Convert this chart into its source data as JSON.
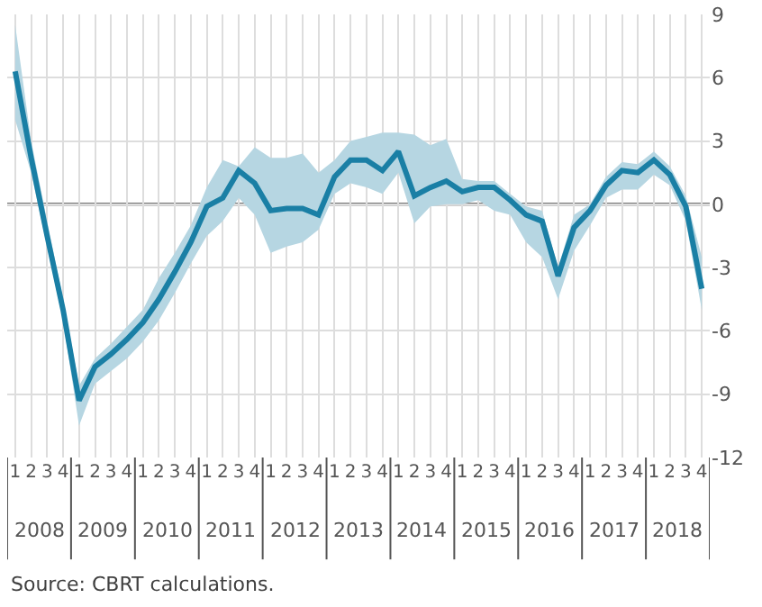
{
  "chart_data": {
    "type": "line",
    "categories": [
      "1",
      "2",
      "3",
      "4",
      "1",
      "2",
      "3",
      "4",
      "1",
      "2",
      "3",
      "4",
      "1",
      "2",
      "3",
      "4",
      "1",
      "2",
      "3",
      "4",
      "1",
      "2",
      "3",
      "4",
      "1",
      "2",
      "3",
      "4",
      "1",
      "2",
      "3",
      "4",
      "1",
      "2",
      "3",
      "4",
      "1",
      "2",
      "3",
      "4",
      "1",
      "2",
      "3",
      "4"
    ],
    "series": [
      {
        "color": "#1a7fa5",
        "values": [
          6.3,
          2.2,
          -1.5,
          -5.0,
          -9.3,
          -7.7,
          -7.1,
          -6.4,
          -5.6,
          -4.5,
          -3.2,
          -1.8,
          -0.1,
          0.3,
          1.6,
          1.0,
          -0.3,
          -0.2,
          -0.2,
          -0.5,
          1.3,
          2.1,
          2.1,
          1.6,
          2.5,
          0.4,
          0.8,
          1.1,
          0.6,
          0.8,
          0.8,
          0.2,
          -0.5,
          -0.8,
          -3.4,
          -1.1,
          -0.3,
          0.9,
          1.6,
          1.5,
          2.1,
          1.4,
          -0.1,
          -4.0
        ],
        "lower": [
          4.0,
          1.5,
          -2.0,
          -5.5,
          -10.5,
          -8.5,
          -7.9,
          -7.3,
          -6.5,
          -5.5,
          -4.2,
          -2.8,
          -1.5,
          -0.8,
          0.3,
          -0.5,
          -2.3,
          -2.0,
          -1.8,
          -1.2,
          0.5,
          1.0,
          0.8,
          0.5,
          1.5,
          -0.9,
          -0.1,
          0.0,
          0.0,
          0.2,
          -0.3,
          -0.5,
          -1.8,
          -2.5,
          -4.5,
          -2.2,
          -1.0,
          0.3,
          0.7,
          0.7,
          1.4,
          0.9,
          -0.8,
          -5.0
        ],
        "upper": [
          8.5,
          3.0,
          -0.8,
          -4.5,
          -8.6,
          -7.3,
          -6.6,
          -5.8,
          -5.0,
          -3.5,
          -2.3,
          -1.0,
          0.8,
          2.1,
          1.8,
          2.7,
          2.2,
          2.2,
          2.4,
          1.5,
          2.1,
          3.0,
          3.2,
          3.4,
          3.4,
          3.3,
          2.8,
          3.1,
          1.2,
          1.1,
          1.1,
          0.5,
          -0.1,
          -0.3,
          -3.0,
          -0.5,
          0.0,
          1.3,
          2.0,
          1.9,
          2.5,
          1.8,
          0.4,
          -2.5
        ]
      }
    ],
    "ylim": [
      -12,
      9
    ],
    "yticks": [
      -12,
      -9,
      -6,
      -3,
      0,
      3,
      6,
      9
    ],
    "ref_lines": [
      {
        "axis": "y",
        "value": 0,
        "color": "#404040"
      }
    ],
    "grid": true,
    "marker": "none",
    "line_style": "solid",
    "annotations": [
      "2008",
      "2009",
      "2010",
      "2011",
      "2012",
      "2013",
      "2014",
      "2015",
      "2016",
      "2017",
      "2018",
      "Source: CBRT calculations."
    ]
  }
}
